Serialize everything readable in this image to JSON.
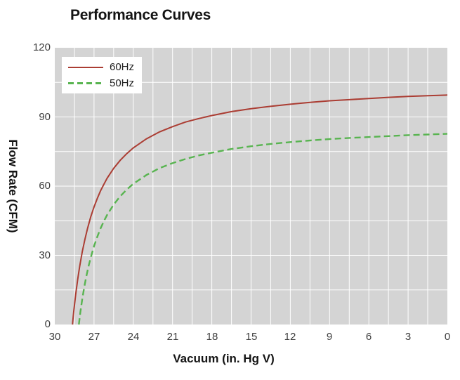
{
  "chart_data": {
    "type": "line",
    "title": "Performance Curves",
    "xlabel": "Vacuum (in. Hg V)",
    "ylabel": "Flow Rate (CFM)",
    "x_axis": {
      "min": 0,
      "max": 30,
      "reversed": true,
      "ticks": [
        30,
        27,
        24,
        21,
        18,
        15,
        12,
        9,
        6,
        3,
        0
      ],
      "minor_grid_step": 1.5
    },
    "y_axis": {
      "min": 0,
      "max": 120,
      "ticks": [
        120,
        90,
        60,
        30,
        0
      ],
      "minor_grid_step": 15
    },
    "grid": true,
    "colors": {
      "plot_background": "#d4d4d4",
      "grid": "#ffffff",
      "title_text": "#141414",
      "tick_text": "#3d3d3d"
    },
    "legend": {
      "position": "top-left",
      "background": "#ffffff"
    },
    "series": [
      {
        "name": "60Hz",
        "color": "#ab3d33",
        "line_style": "solid",
        "line_width": 2,
        "points": [
          [
            28.65,
            0
          ],
          [
            28.55,
            5.7
          ],
          [
            28.4,
            13.1
          ],
          [
            28.25,
            19.5
          ],
          [
            28.1,
            25.1
          ],
          [
            27.9,
            31.5
          ],
          [
            27.7,
            36.9
          ],
          [
            27.5,
            41.6
          ],
          [
            27.25,
            46.7
          ],
          [
            27,
            51
          ],
          [
            26.75,
            54.7
          ],
          [
            26.5,
            58
          ],
          [
            26.25,
            60.8
          ],
          [
            26,
            63.4
          ],
          [
            25.5,
            67.7
          ],
          [
            25,
            71.2
          ],
          [
            24.5,
            74.1
          ],
          [
            24,
            76.6
          ],
          [
            23,
            80.5
          ],
          [
            22,
            83.5
          ],
          [
            21,
            85.8
          ],
          [
            20,
            87.8
          ],
          [
            19,
            89.3
          ],
          [
            18,
            90.6
          ],
          [
            16.5,
            92.3
          ],
          [
            15,
            93.6
          ],
          [
            13.5,
            94.6
          ],
          [
            12,
            95.5
          ],
          [
            10.5,
            96.3
          ],
          [
            9,
            97
          ],
          [
            7.5,
            97.5
          ],
          [
            6,
            98
          ],
          [
            4.5,
            98.5
          ],
          [
            3,
            98.9
          ],
          [
            1.5,
            99.2
          ],
          [
            0,
            99.5
          ]
        ]
      },
      {
        "name": "50Hz",
        "color": "#58b450",
        "line_style": "dashed",
        "line_width": 2.4,
        "dash": [
          9,
          5
        ],
        "points": [
          [
            28.16,
            0
          ],
          [
            28.05,
            5.1
          ],
          [
            27.9,
            11
          ],
          [
            27.75,
            16.1
          ],
          [
            27.6,
            20.6
          ],
          [
            27.4,
            25.7
          ],
          [
            27.2,
            30.1
          ],
          [
            27,
            34
          ],
          [
            26.75,
            38.1
          ],
          [
            26.5,
            41.7
          ],
          [
            26.25,
            44.8
          ],
          [
            26,
            47.5
          ],
          [
            25.5,
            52
          ],
          [
            25,
            55.6
          ],
          [
            24.5,
            58.5
          ],
          [
            24,
            61
          ],
          [
            23,
            64.8
          ],
          [
            22,
            67.8
          ],
          [
            21,
            70
          ],
          [
            20,
            71.8
          ],
          [
            19,
            73.3
          ],
          [
            18,
            74.5
          ],
          [
            16.5,
            76.1
          ],
          [
            15,
            77.3
          ],
          [
            13.5,
            78.3
          ],
          [
            12,
            79.1
          ],
          [
            10.5,
            79.8
          ],
          [
            9,
            80.4
          ],
          [
            7.5,
            80.9
          ],
          [
            6,
            81.3
          ],
          [
            4.5,
            81.7
          ],
          [
            3,
            82.1
          ],
          [
            1.5,
            82.4
          ],
          [
            0,
            82.7
          ]
        ]
      }
    ]
  }
}
